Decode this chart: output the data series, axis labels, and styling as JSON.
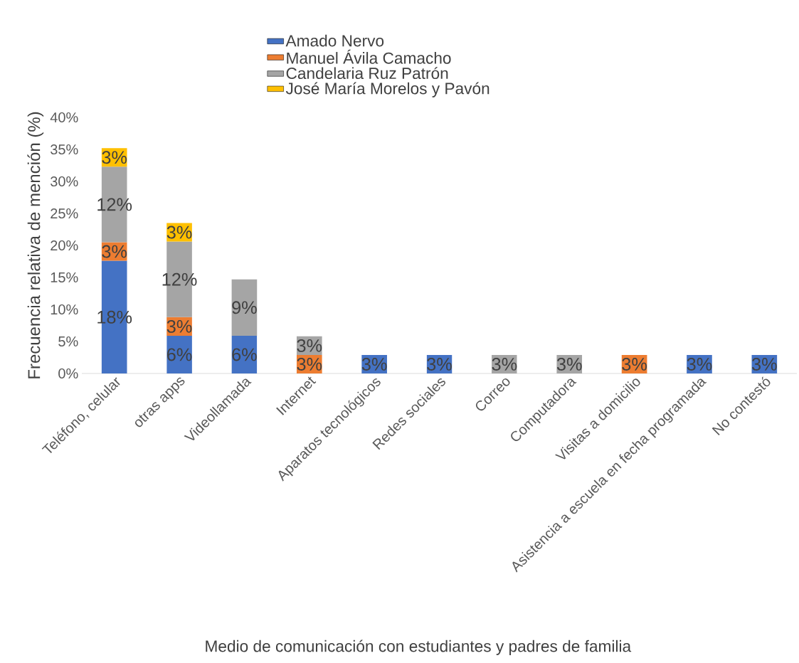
{
  "chart_data": {
    "type": "bar",
    "stacked": true,
    "xlabel": "Medio de comunicación con estudiantes y padres de familia",
    "ylabel": "Frecuencia relativa de mención (%)",
    "categories": [
      "Teléfono, celular",
      "otras apps",
      "Videollamada",
      "Internet",
      "Aparatos tecnológicos",
      "Redes sociales",
      "Correo",
      "Computadora",
      "Visitas a domicilio",
      "Asistencia a escuela en fecha programada",
      "No contestó"
    ],
    "series": [
      {
        "name": "Amado Nervo",
        "color": "#4472c4",
        "values": [
          17.6,
          5.9,
          5.9,
          null,
          2.9,
          2.9,
          null,
          null,
          null,
          2.9,
          2.9
        ],
        "value_labels": [
          "18%",
          "6%",
          "6%",
          null,
          "3%",
          "3%",
          null,
          null,
          null,
          "3%",
          "3%"
        ]
      },
      {
        "name": "Manuel Ávila Camacho",
        "color": "#ed7d31",
        "values": [
          2.9,
          2.9,
          null,
          2.9,
          null,
          null,
          null,
          null,
          2.9,
          null,
          null
        ],
        "value_labels": [
          "3%",
          "3%",
          null,
          "3%",
          null,
          null,
          null,
          null,
          "3%",
          null,
          null
        ]
      },
      {
        "name": "Candelaria Ruz Patrón",
        "color": "#a5a5a5",
        "values": [
          11.8,
          11.8,
          8.8,
          2.9,
          null,
          null,
          2.9,
          2.9,
          null,
          null,
          null
        ],
        "value_labels": [
          "12%",
          "12%",
          "9%",
          "3%",
          null,
          null,
          "3%",
          "3%",
          null,
          null,
          null
        ]
      },
      {
        "name": "José María Morelos y Pavón",
        "color": "#ffc000",
        "values": [
          2.9,
          2.9,
          null,
          null,
          null,
          null,
          null,
          null,
          null,
          null,
          null
        ],
        "value_labels": [
          "3%",
          "3%",
          null,
          null,
          null,
          null,
          null,
          null,
          null,
          null,
          null
        ]
      }
    ],
    "ylim": [
      0,
      40
    ],
    "yticks": [
      {
        "value": 0,
        "label": "0%"
      },
      {
        "value": 5,
        "label": "5%"
      },
      {
        "value": 10,
        "label": "10%"
      },
      {
        "value": 15,
        "label": "15%"
      },
      {
        "value": 20,
        "label": "20%"
      },
      {
        "value": 25,
        "label": "25%"
      },
      {
        "value": 30,
        "label": "30%"
      },
      {
        "value": 35,
        "label": "35%"
      },
      {
        "value": 40,
        "label": "40%"
      }
    ],
    "legend": "top",
    "grid": false
  }
}
